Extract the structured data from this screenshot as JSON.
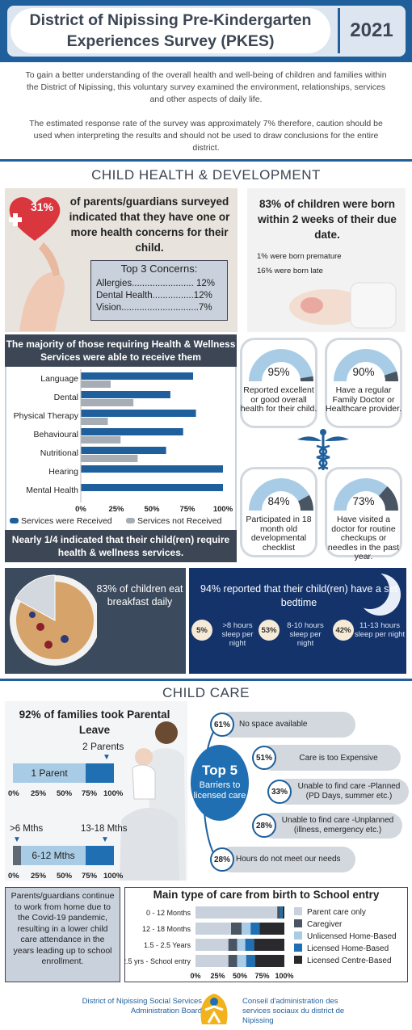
{
  "header": {
    "title": "District of Nipissing Pre-Kindergarten Experiences Survey (PKES)",
    "year": "2021"
  },
  "intro": {
    "p1": "To gain a better understanding of the overall health and well-being of children and families within the District of Nipissing, this voluntary survey examined the environment, relationships, services and other aspects of daily life.",
    "p2": "The estimated response rate of the survey was approximately 7% therefore, caution should be used when interpreting the results and should not be used to draw conclusions for the entire district."
  },
  "health": {
    "section_title": "CHILD HEALTH & DEVELOPMENT",
    "concern_pct": "31%",
    "concern_text": "of parents/guardians surveyed indicated that they have one or more health concerns for their child.",
    "top3_title": "Top 3 Concerns:",
    "top3": [
      "Allergies........................ 12%",
      "Dental Health................12%",
      "Vision..............................7%"
    ],
    "born_text": "83% of children were born within 2 weeks of their due date.",
    "premature": "1% were born premature",
    "late": "16% were born late"
  },
  "services": {
    "heading": "The majority of those requiring Health & Wellness Services were able to receive them",
    "footer": "Nearly 1/4 indicated that their child(ren) require health & wellness services.",
    "legend_received": "Services were Received",
    "legend_not": "Services not Received",
    "colors": {
      "received": "#1f5f9b",
      "not": "#a6adb5"
    }
  },
  "chart_data": [
    {
      "type": "bar",
      "orientation": "horizontal",
      "categories": [
        "Language",
        "Dental",
        "Physical Therapy",
        "Behavioural",
        "Nutritional",
        "Hearing",
        "Mental Health"
      ],
      "series": [
        {
          "name": "Services were Received",
          "values": [
            79,
            63,
            81,
            72,
            60,
            100,
            100
          ]
        },
        {
          "name": "Services not Received",
          "values": [
            21,
            37,
            19,
            28,
            40,
            0,
            0
          ]
        }
      ],
      "ticks": [
        "0%",
        "25%",
        "50%",
        "75%",
        "100%"
      ],
      "xlim": [
        0,
        100
      ]
    },
    {
      "type": "bar",
      "orientation": "horizontal",
      "title": "Main type of care from birth to School entry",
      "categories": [
        "0 - 12 Months",
        "12 - 18 Months",
        "1.5 - 2.5 Years",
        "2.5 yrs - School entry"
      ],
      "series": [
        {
          "name": "Parent care only",
          "values": [
            92,
            40,
            37,
            37
          ]
        },
        {
          "name": "Caregiver",
          "values": [
            3,
            12,
            10,
            10
          ]
        },
        {
          "name": "Unlicensed Home-Based",
          "values": [
            0,
            10,
            9,
            10
          ]
        },
        {
          "name": "Licensed Home-Based",
          "values": [
            3,
            10,
            10,
            10
          ]
        },
        {
          "name": "Licensed Centre-Based",
          "values": [
            2,
            28,
            34,
            33
          ]
        }
      ],
      "ticks": [
        "0%",
        "25%",
        "50%",
        "75%",
        "100%"
      ],
      "xlim": [
        0,
        100
      ]
    }
  ],
  "gauges": [
    {
      "pct": "95%",
      "value": 95,
      "desc": "Reported excellent or good overall health for their child."
    },
    {
      "pct": "90%",
      "value": 90,
      "desc": "Have a regular Family Doctor or Healthcare provider."
    },
    {
      "pct": "84%",
      "value": 84,
      "desc": "Participated in 18 month old developmental checklist"
    },
    {
      "pct": "73%",
      "value": 73,
      "desc": "Have visited a doctor for routine checkups or needles in the past year."
    }
  ],
  "breakfast": {
    "text": "83% of children eat breakfast daily",
    "value": 83
  },
  "sleep": {
    "title": "94% reported that their child(ren) have a set bedtime",
    "items": [
      {
        "pct": "5%",
        "label": ">8 hours sleep per night"
      },
      {
        "pct": "53%",
        "label": "8-10 hours sleep per night"
      },
      {
        "pct": "42%",
        "label": "11-13 hours sleep per night"
      }
    ]
  },
  "childcare": {
    "section_title": "CHILD CARE",
    "leave_title": "92% of families took Parental Leave",
    "two_parents": "2 Parents",
    "one_parent": "1 Parent",
    "one_parent_share": 0.72,
    "six_mths": ">6 Mths",
    "mid_mths": "6-12 Mths",
    "long_mths": "13-18 Mths",
    "ticks": [
      "0%",
      "25%",
      "50%",
      "75%",
      "100%"
    ],
    "barrier_title": "Top 5",
    "barrier_sub": "Barriers to licensed care",
    "barriers": [
      {
        "pct": "61%",
        "text": "No space available"
      },
      {
        "pct": "51%",
        "text": "Care is too Expensive"
      },
      {
        "pct": "33%",
        "text": "Unable to find care -Planned (PD Days, summer etc.)"
      },
      {
        "pct": "28%",
        "text": "Unable to find care -Unplanned (illness, emergency etc.)"
      },
      {
        "pct": "28%",
        "text": "Hours do not meet our needs"
      }
    ],
    "work_text": "Parents/guardians continue to work from home due to the Covid-19 pandemic, resulting in a lower child care attendance in the years leading up to school enrollment.",
    "care_colors": [
      "#c9d2dc",
      "#4a5563",
      "#a9cce6",
      "#1f6fb2",
      "#2a2a2e"
    ]
  },
  "footer": {
    "left": "District of Nipissing Social Services Administration Board",
    "right": "Conseil d'administration des services sociaux du district de Nipissing"
  }
}
